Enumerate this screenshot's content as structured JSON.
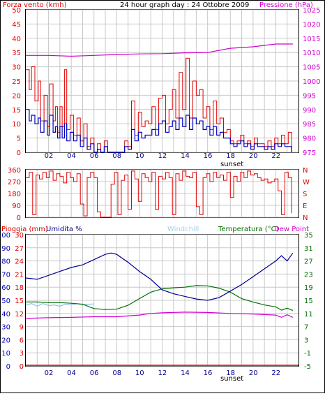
{
  "header": {
    "left_label": "Forza vento (kmh)",
    "title": "24 hour graph day : 24 Ottobre 2009",
    "right_label": "Pressione (hPa)"
  },
  "x_ticks": [
    "02",
    "04",
    "06",
    "08",
    "10",
    "12",
    "14",
    "16",
    "18",
    "20",
    "22"
  ],
  "sunset_label": "sunset",
  "bottom_header": {
    "rain_label": "Pioggia (mm)",
    "humidity_label": "Umidita %",
    "windchill_label": "Windchill",
    "temperature_label": "Temperatura (°C)",
    "dewpoint_label": "Dew Point"
  },
  "colors": {
    "frame": "#000000",
    "grid": "#c8c8c8",
    "wind_speed": "#e00000",
    "wind_avg": "#0000c0",
    "pressure": "#d000d0",
    "direction": "#e00000",
    "humidity": "#000090",
    "temperature": "#007000",
    "dewpoint": "#d000d0",
    "windchill": "#90c0e0",
    "rain": "#e00000",
    "rain_axis": "#e00000",
    "humidity_axis": "#0000c0",
    "temp_axis": "#007000"
  },
  "chart_data": [
    {
      "id": "wind",
      "type": "line",
      "title": "24 hour graph day : 24 Ottobre 2009",
      "x_range": [
        0,
        24
      ],
      "ylabel_left": "Forza vento (kmh)",
      "ylim_left": [
        0,
        50
      ],
      "yticks_left": [
        0,
        5,
        10,
        15,
        20,
        25,
        30,
        35,
        40,
        45,
        50
      ],
      "ylabel_right": "Pressione (hPa)",
      "ylim_right": [
        975,
        1025
      ],
      "yticks_right": [
        975,
        980,
        985,
        990,
        995,
        1000,
        1005,
        1010,
        1015,
        1020,
        1025
      ],
      "series": [
        {
          "axis": "left",
          "x": [
            0,
            0.3,
            0.5,
            0.8,
            1.1,
            1.3,
            1.6,
            1.9,
            2.1,
            2.4,
            2.6,
            2.8,
            3.0,
            3.2,
            3.4,
            3.6,
            3.9,
            4.2,
            4.5,
            4.8,
            5.1,
            5.4,
            5.7,
            6.0,
            6.3,
            6.6,
            6.9,
            7.2,
            7.5,
            7.8,
            8.1,
            8.4,
            8.7,
            9.0,
            9.3,
            9.6,
            9.9,
            10.2,
            10.5,
            10.8,
            11.1,
            11.4,
            11.7,
            12.0,
            12.3,
            12.6,
            12.9,
            13.2,
            13.5,
            13.8,
            14.1,
            14.4,
            14.7,
            15.0,
            15.3,
            15.6,
            15.9,
            16.2,
            16.5,
            16.8,
            17.1,
            17.4,
            17.7,
            18.0,
            18.3,
            18.6,
            18.9,
            19.2,
            19.5,
            19.8,
            20.1,
            20.4,
            20.7,
            21.0,
            21.3,
            21.6,
            21.9,
            22.2,
            22.5,
            22.8,
            23.1,
            23.4
          ],
          "y": [
            29,
            22,
            30,
            18,
            25,
            11,
            20,
            9,
            24,
            11,
            16,
            7,
            16,
            9,
            29,
            8,
            13,
            6,
            12,
            4,
            10,
            2,
            5,
            0,
            3,
            0,
            4,
            0,
            0,
            0,
            0,
            0,
            4,
            2,
            18,
            6,
            14,
            9,
            11,
            10,
            16,
            8,
            19,
            20,
            10,
            15,
            22,
            12,
            28,
            15,
            33,
            12,
            25,
            20,
            22,
            12,
            16,
            8,
            18,
            10,
            12,
            7,
            8,
            4,
            3,
            4,
            6,
            3,
            4,
            2,
            5,
            3,
            3,
            2,
            4,
            2,
            5,
            3,
            6,
            3,
            7,
            0
          ]
        },
        {
          "axis": "left",
          "x": [
            0,
            0.3,
            0.5,
            0.8,
            1.1,
            1.3,
            1.6,
            1.9,
            2.1,
            2.4,
            2.6,
            2.8,
            3.0,
            3.2,
            3.4,
            3.6,
            3.9,
            4.2,
            4.5,
            4.8,
            5.1,
            5.4,
            5.7,
            6.0,
            6.3,
            6.6,
            6.9,
            7.2,
            7.5,
            7.8,
            8.1,
            8.4,
            8.7,
            9.0,
            9.3,
            9.6,
            9.9,
            10.2,
            10.5,
            10.8,
            11.1,
            11.4,
            11.7,
            12.0,
            12.3,
            12.6,
            12.9,
            13.2,
            13.5,
            13.8,
            14.1,
            14.4,
            14.7,
            15.0,
            15.3,
            15.6,
            15.9,
            16.2,
            16.5,
            16.8,
            17.1,
            17.4,
            17.7,
            18.0,
            18.3,
            18.6,
            18.9,
            19.2,
            19.5,
            19.8,
            20.1,
            20.4,
            20.7,
            21.0,
            21.3,
            21.6,
            21.9,
            22.2,
            22.5,
            22.8,
            23.1,
            23.4
          ],
          "y": [
            15,
            11,
            13,
            10,
            12,
            7,
            11,
            6,
            13,
            7,
            9,
            5,
            9,
            5,
            10,
            4,
            7,
            4,
            6,
            2,
            5,
            1,
            3,
            0,
            1,
            0,
            2,
            0,
            0,
            0,
            0,
            0,
            2,
            1,
            8,
            4,
            7,
            5,
            6,
            6,
            8,
            6,
            10,
            11,
            7,
            9,
            11,
            8,
            12,
            9,
            13,
            8,
            12,
            10,
            11,
            8,
            9,
            6,
            9,
            6,
            7,
            5,
            5,
            3,
            2,
            3,
            4,
            2,
            3,
            1,
            3,
            2,
            2,
            1,
            2,
            1,
            3,
            2,
            3,
            2,
            2,
            0
          ]
        },
        {
          "axis": "right",
          "x": [
            0,
            2,
            4,
            6,
            8,
            10,
            12,
            14,
            16,
            18,
            20,
            22,
            23.5
          ],
          "y": [
            1009,
            1009,
            1008.7,
            1009,
            1009.3,
            1009.5,
            1009.6,
            1009.9,
            1010,
            1011.5,
            1012,
            1013,
            1013
          ]
        }
      ]
    },
    {
      "id": "direction",
      "type": "line",
      "x_range": [
        0,
        24
      ],
      "ylim_left": [
        0,
        360
      ],
      "yticks_left": [
        0,
        90,
        180,
        270,
        360
      ],
      "compass_labels": [
        "N",
        "W",
        "S",
        "E",
        "N"
      ],
      "series": [
        {
          "x": [
            0,
            0.3,
            0.6,
            0.9,
            1.2,
            1.5,
            1.8,
            2.1,
            2.4,
            2.7,
            3.0,
            3.3,
            3.6,
            3.9,
            4.2,
            4.5,
            4.8,
            5.1,
            5.4,
            5.7,
            6.0,
            6.3,
            6.6,
            6.9,
            7.2,
            7.5,
            7.8,
            8.1,
            8.4,
            8.7,
            9.0,
            9.3,
            9.6,
            9.9,
            10.2,
            10.5,
            10.8,
            11.1,
            11.4,
            11.7,
            12.0,
            12.3,
            12.6,
            12.9,
            13.2,
            13.5,
            13.8,
            14.1,
            14.4,
            14.7,
            15.0,
            15.3,
            15.6,
            15.9,
            16.2,
            16.5,
            16.8,
            17.1,
            17.4,
            17.7,
            18.0,
            18.3,
            18.6,
            18.9,
            19.2,
            19.5,
            19.8,
            20.1,
            20.4,
            20.7,
            21.0,
            21.3,
            21.6,
            21.9,
            22.2,
            22.5,
            22.8,
            23.1,
            23.4
          ],
          "y": [
            300,
            340,
            20,
            320,
            290,
            340,
            300,
            350,
            280,
            330,
            310,
            260,
            340,
            300,
            270,
            330,
            100,
            10,
            300,
            340,
            300,
            40,
            0,
            0,
            0,
            250,
            340,
            20,
            280,
            320,
            60,
            350,
            290,
            120,
            330,
            300,
            270,
            340,
            60,
            310,
            290,
            340,
            300,
            20,
            330,
            280,
            350,
            310,
            300,
            340,
            80,
            20,
            300,
            330,
            270,
            340,
            300,
            320,
            280,
            340,
            150,
            310,
            270,
            340,
            300,
            350,
            320,
            330,
            300,
            280,
            290,
            260,
            270,
            290,
            200,
            20,
            340,
            300,
            30
          ]
        }
      ]
    },
    {
      "id": "temperature",
      "type": "line",
      "x_range": [
        0,
        24
      ],
      "ylabel_left": "Pioggia (mm)",
      "ylim_rain": [
        0,
        30
      ],
      "yticks_rain": [
        0,
        3,
        6,
        9,
        12,
        15,
        18,
        21,
        24,
        27,
        30
      ],
      "ylabel_humidity": "Umidita %",
      "ylim_humidity": [
        0,
        100
      ],
      "yticks_humidity": [
        0,
        10,
        20,
        30,
        40,
        50,
        60,
        70,
        80,
        90,
        100
      ],
      "ylabel_right": "Temperatura (°C)",
      "ylim_right": [
        -5,
        35
      ],
      "yticks_right": [
        -5,
        -1,
        3,
        7,
        11,
        15,
        19,
        23,
        27,
        31,
        35
      ],
      "series": [
        {
          "name": "Umidita %",
          "axis": "humidity",
          "x": [
            0,
            1,
            2,
            3,
            4,
            5,
            6,
            7,
            7.5,
            8,
            9,
            10,
            11,
            12,
            13,
            14,
            15,
            16,
            17,
            18,
            19,
            20,
            21,
            22,
            22.5,
            23,
            23.5
          ],
          "y": [
            67,
            66,
            69,
            72,
            75,
            77,
            81,
            85,
            86,
            85,
            79,
            72,
            66,
            58,
            55,
            53,
            51,
            50,
            52,
            57,
            62,
            68,
            74,
            80,
            84,
            80,
            86
          ]
        },
        {
          "name": "Temperatura (°C)",
          "axis": "right",
          "x": [
            0,
            1,
            2,
            3,
            4,
            5,
            6,
            7,
            8,
            9,
            10,
            11,
            12,
            13,
            14,
            15,
            16,
            17,
            18,
            19,
            20,
            21,
            22,
            22.5,
            23,
            23.5
          ],
          "y": [
            14.5,
            14.5,
            14.3,
            14.3,
            14.1,
            13.8,
            12.5,
            12.2,
            12.3,
            13.5,
            15.5,
            17.5,
            18.5,
            18.8,
            19,
            19.5,
            19.4,
            18.7,
            17.5,
            15.5,
            14.5,
            13.6,
            13,
            12,
            12.6,
            11.9
          ]
        },
        {
          "name": "Dew Point",
          "axis": "right",
          "x": [
            0,
            2,
            4,
            6,
            8,
            10,
            11,
            12,
            14,
            16,
            18,
            20,
            22,
            22.5,
            23,
            23.5
          ],
          "y": [
            9.5,
            9.7,
            9.8,
            10,
            10,
            10.5,
            11,
            11.2,
            11.4,
            11.3,
            11,
            10.8,
            10.5,
            9.8,
            10.6,
            9.8
          ]
        },
        {
          "name": "Windchill",
          "axis": "right",
          "x": [
            0,
            0.5,
            1,
            1.5,
            2,
            2.5,
            3,
            3.5,
            4,
            4.5,
            5,
            5.5,
            6
          ],
          "y": [
            13.5,
            14,
            13.2,
            14,
            13.4,
            13.6,
            13.2,
            13.8,
            13.6,
            14,
            13.7,
            13.8,
            13.9
          ]
        },
        {
          "name": "Pioggia (mm)",
          "axis": "rain",
          "x": [
            0,
            24
          ],
          "y": [
            0,
            0
          ]
        }
      ]
    }
  ]
}
